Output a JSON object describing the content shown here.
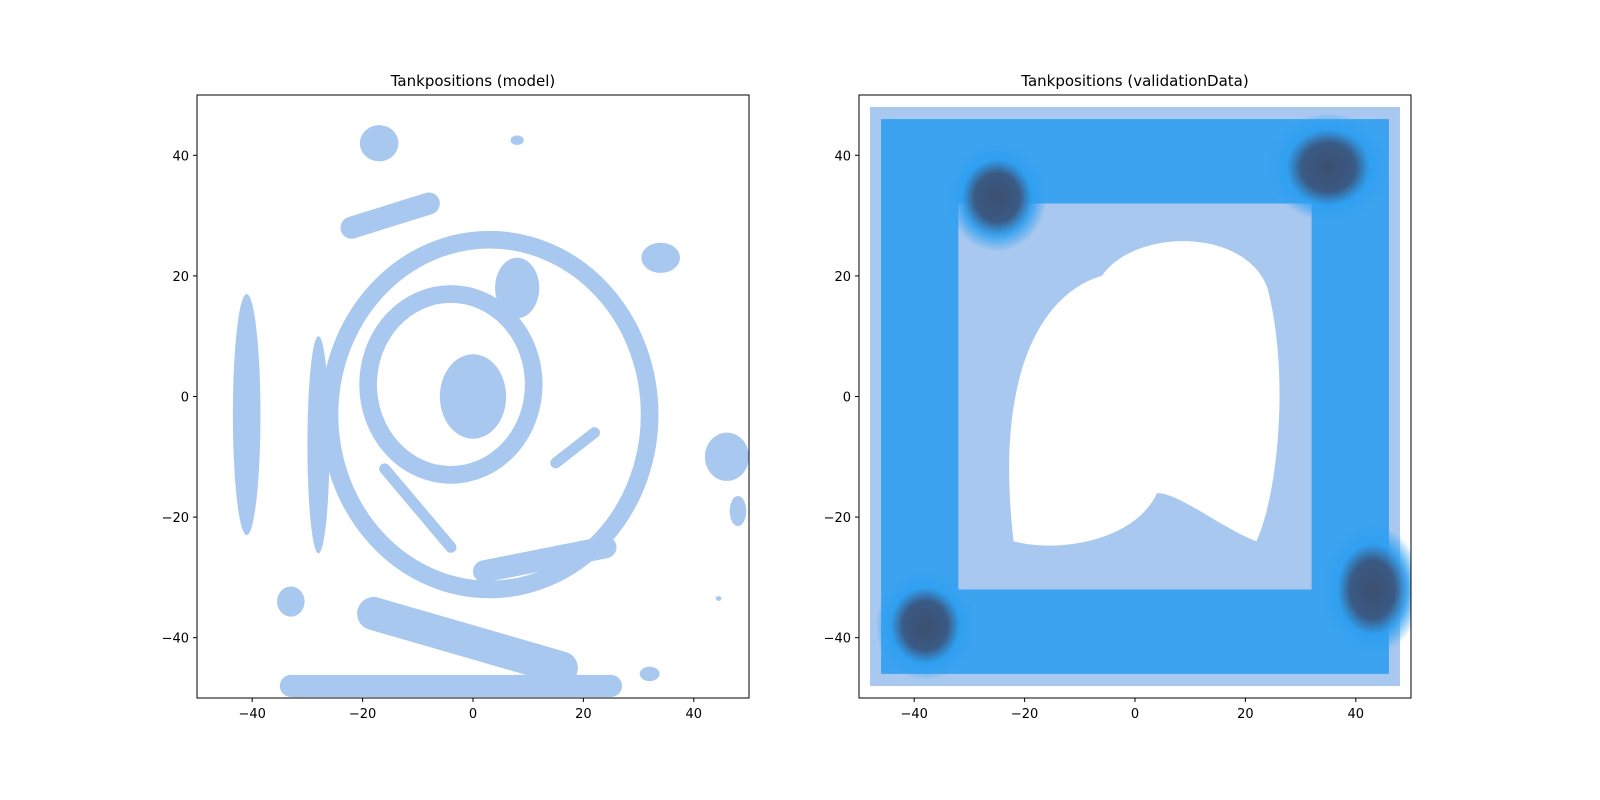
{
  "chart_data": [
    {
      "type": "heatmap",
      "plot_style": "kde-density",
      "title": "Tankpositions (model)",
      "xlabel": "",
      "ylabel": "",
      "xlim": [
        -50,
        50
      ],
      "ylim": [
        -50,
        50
      ],
      "xticks": [
        -40,
        -20,
        0,
        20,
        40
      ],
      "yticks": [
        -40,
        -20,
        0,
        20,
        40
      ],
      "grid": false,
      "colormap": [
        "#ffffff",
        "#a9c8ef",
        "#2f9ff0",
        "#3c4f6e"
      ],
      "density_features": [
        {
          "kind": "peak",
          "x": 0,
          "y": 0,
          "rx": 2,
          "ry": 3,
          "level": 1.0
        },
        {
          "kind": "blob",
          "x": 0,
          "y": 0,
          "rx": 6,
          "ry": 7,
          "level": 0.3
        },
        {
          "kind": "ring",
          "x": 3,
          "y": -3,
          "r": 29,
          "level": 0.3
        },
        {
          "kind": "ring",
          "x": -4,
          "y": 2,
          "r": 15,
          "level": 0.3
        },
        {
          "kind": "blob",
          "x": 8,
          "y": 18,
          "rx": 4,
          "ry": 5,
          "level": 0.3
        },
        {
          "kind": "blob",
          "x": -41,
          "y": -3,
          "rx": 2.5,
          "ry": 20,
          "level": 0.3
        },
        {
          "kind": "blob",
          "x": -28,
          "y": -8,
          "rx": 2,
          "ry": 18,
          "level": 0.3
        },
        {
          "kind": "blob",
          "x": -17,
          "y": 42,
          "rx": 3.5,
          "ry": 3,
          "level": 0.3
        },
        {
          "kind": "blob",
          "x": 8,
          "y": 42.5,
          "rx": 1.2,
          "ry": 0.8,
          "level": 0.3
        },
        {
          "kind": "blob",
          "x": 34,
          "y": 23,
          "rx": 3.5,
          "ry": 2.5,
          "level": 0.3
        },
        {
          "kind": "blob",
          "x": 46,
          "y": -10,
          "rx": 4,
          "ry": 4,
          "level": 0.3
        },
        {
          "kind": "blob",
          "x": 48,
          "y": -19,
          "rx": 1.5,
          "ry": 2.5,
          "level": 0.3
        },
        {
          "kind": "blob",
          "x": -33,
          "y": -34,
          "rx": 2.5,
          "ry": 2.5,
          "level": 0.3
        },
        {
          "kind": "blob",
          "x": 32,
          "y": -46,
          "rx": 1.8,
          "ry": 1.2,
          "level": 0.3
        },
        {
          "kind": "blob",
          "x": 44.5,
          "y": -33.5,
          "rx": 0.5,
          "ry": 0.4,
          "level": 0.3
        },
        {
          "kind": "band",
          "x1": -18,
          "y1": -36,
          "x2": 16,
          "y2": -45,
          "w": 3,
          "level": 0.3
        },
        {
          "kind": "band",
          "x1": -33,
          "y1": -48,
          "x2": 25,
          "y2": -48,
          "w": 2,
          "level": 0.3
        },
        {
          "kind": "band",
          "x1": 2,
          "y1": -29,
          "x2": 24,
          "y2": -25,
          "w": 2,
          "level": 0.3
        },
        {
          "kind": "band",
          "x1": -16,
          "y1": -12,
          "x2": -4,
          "y2": -25,
          "w": 1,
          "level": 0.3
        },
        {
          "kind": "band",
          "x1": 15,
          "y1": -11,
          "x2": 22,
          "y2": -6,
          "w": 1,
          "level": 0.3
        },
        {
          "kind": "band",
          "x1": -22,
          "y1": 28,
          "x2": -8,
          "y2": 32,
          "w": 2,
          "level": 0.3
        }
      ]
    },
    {
      "type": "heatmap",
      "plot_style": "kde-density",
      "title": "Tankpositions (validationData)",
      "xlabel": "",
      "ylabel": "",
      "xlim": [
        -50,
        50
      ],
      "ylim": [
        -50,
        50
      ],
      "xticks": [
        -40,
        -20,
        0,
        20,
        40
      ],
      "yticks": [
        -40,
        -20,
        0,
        20,
        40
      ],
      "grid": false,
      "colormap": [
        "#ffffff",
        "#a9c8ef",
        "#2f9ff0",
        "#3c4f6e"
      ],
      "density_features": [
        {
          "kind": "hollow-square",
          "cx": 0,
          "cy": 0,
          "outer_half": 48,
          "inner_half": 26,
          "level": 0.55
        },
        {
          "kind": "peak",
          "x": -25,
          "y": 33,
          "rx": 5,
          "ry": 5,
          "level": 1.0
        },
        {
          "kind": "peak",
          "x": 43,
          "y": -32,
          "rx": 5,
          "ry": 6,
          "level": 1.0
        },
        {
          "kind": "peak",
          "x": -38,
          "y": -38,
          "rx": 5,
          "ry": 5,
          "level": 0.75
        },
        {
          "kind": "peak",
          "x": 35,
          "y": 38,
          "rx": 6,
          "ry": 5,
          "level": 0.7
        }
      ]
    }
  ]
}
